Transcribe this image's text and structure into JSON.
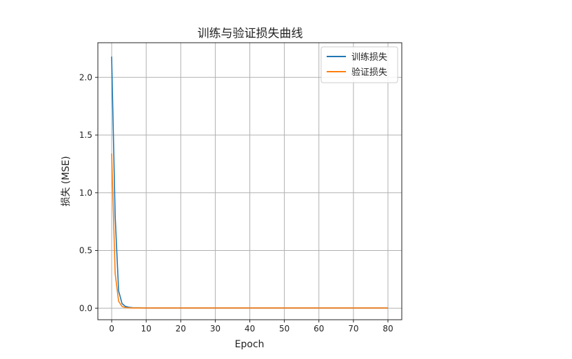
{
  "chart_data": {
    "type": "line",
    "title": "训练与验证损失曲线",
    "xlabel": "Epoch",
    "ylabel": "损失 (MSE)",
    "xlim": [
      -4,
      84
    ],
    "ylim": [
      -0.1,
      2.3
    ],
    "xticks": [
      0,
      10,
      20,
      30,
      40,
      50,
      60,
      70,
      80
    ],
    "yticks": [
      0.0,
      0.5,
      1.0,
      1.5,
      2.0
    ],
    "ytick_labels": [
      "0.0",
      "0.5",
      "1.0",
      "1.5",
      "2.0"
    ],
    "grid": true,
    "legend_position": "top-right",
    "series": [
      {
        "name": "训练损失",
        "color": "#1f77b4",
        "x": [
          0,
          1,
          2,
          3,
          4,
          5,
          6,
          8,
          10,
          20,
          30,
          40,
          50,
          60,
          70,
          80
        ],
        "y": [
          2.18,
          0.8,
          0.15,
          0.04,
          0.015,
          0.008,
          0.004,
          0.003,
          0.002,
          0.002,
          0.002,
          0.002,
          0.002,
          0.002,
          0.002,
          0.002
        ]
      },
      {
        "name": "验证损失",
        "color": "#ff7f0e",
        "x": [
          0,
          1,
          2,
          3,
          4,
          5,
          6,
          8,
          10,
          20,
          30,
          40,
          50,
          60,
          70,
          80
        ],
        "y": [
          1.34,
          0.3,
          0.06,
          0.015,
          0.005,
          0.003,
          0.002,
          0.002,
          0.002,
          0.002,
          0.002,
          0.002,
          0.002,
          0.002,
          0.002,
          0.002
        ]
      }
    ]
  }
}
